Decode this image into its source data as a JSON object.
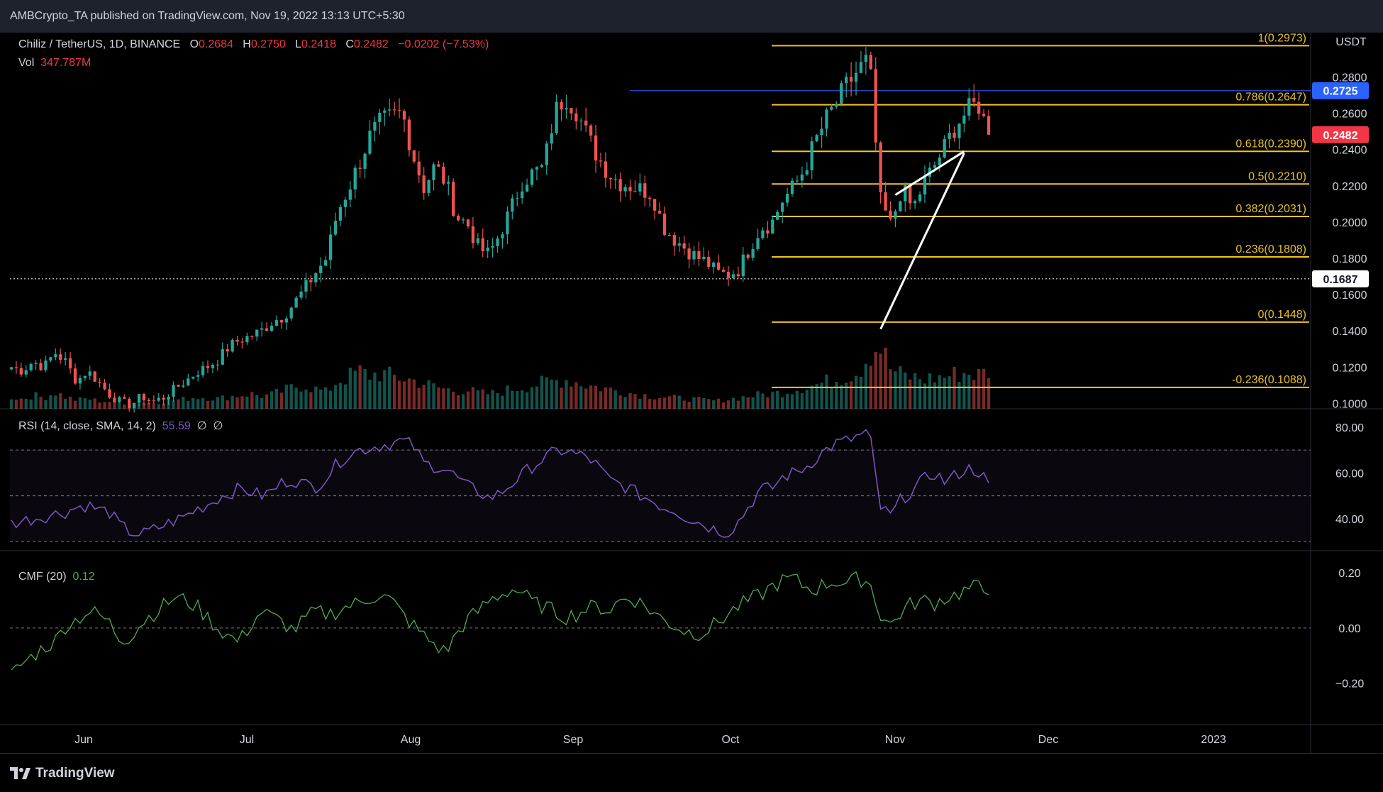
{
  "header": {
    "published": "AMBCrypto_TA published on TradingView.com, Nov 19, 2022 13:13 UTC+5:30"
  },
  "legend": {
    "symbol": "Chiliz / TetherUS, 1D, BINANCE",
    "o_label": "O",
    "o_value": "0.2684",
    "h_label": "H",
    "h_value": "0.2750",
    "l_label": "L",
    "l_value": "0.2418",
    "c_label": "C",
    "c_value": "0.2482",
    "change": "−0.0202 (−7.53%)",
    "vol_label": "Vol",
    "vol_value": "347.787M",
    "rsi_label": "RSI (14, close, SMA, 14, 2)",
    "rsi_value": "55.59",
    "rsi_na1": "∅",
    "rsi_na2": "∅",
    "cmf_label": "CMF (20)",
    "cmf_value": "0.12"
  },
  "footer": {
    "logo_text": "TradingView"
  },
  "chart_data": {
    "type": "candlestick",
    "quote_currency": "USDT",
    "x_ticks": [
      "Jun",
      "Jul",
      "Aug",
      "Sep",
      "Oct",
      "Nov",
      "Dec",
      "2023"
    ],
    "price_axis": {
      "ticks": [
        "0.2800",
        "0.2600",
        "0.2400",
        "0.2200",
        "0.2000",
        "0.1800",
        "0.1600",
        "0.1400",
        "0.1200",
        "0.1000"
      ],
      "ylim": [
        0.097,
        0.3045
      ]
    },
    "price_badges": [
      {
        "value": "0.2725",
        "color": "#2962ff"
      },
      {
        "value": "0.2482",
        "color": "#f23645"
      },
      {
        "value": "0.1687",
        "color": "#ffffff"
      }
    ],
    "fib_levels": [
      {
        "label": "1(0.2973)",
        "value": 0.2973
      },
      {
        "label": "0.786(0.2647)",
        "value": 0.2647
      },
      {
        "label": "0.618(0.2390)",
        "value": 0.239
      },
      {
        "label": "0.5(0.2210)",
        "value": 0.221
      },
      {
        "label": "0.382(0.2031)",
        "value": 0.2031
      },
      {
        "label": "0.236(0.1808)",
        "value": 0.1808
      },
      {
        "label": "0(0.1448)",
        "value": 0.1448
      },
      {
        "label": "-0.236(0.1088)",
        "value": 0.1088
      }
    ],
    "resistance_line": 0.2725,
    "current_price_line": 0.1687,
    "close_anchors": [
      0.12,
      0.118,
      0.123,
      0.12,
      0.128,
      0.123,
      0.112,
      0.118,
      0.112,
      0.105,
      0.101,
      0.099,
      0.104,
      0.101,
      0.103,
      0.108,
      0.112,
      0.117,
      0.12,
      0.124,
      0.131,
      0.135,
      0.137,
      0.14,
      0.145,
      0.148,
      0.155,
      0.163,
      0.172,
      0.18,
      0.205,
      0.218,
      0.232,
      0.247,
      0.255,
      0.258,
      0.26,
      0.237,
      0.219,
      0.231,
      0.222,
      0.203,
      0.199,
      0.186,
      0.182,
      0.194,
      0.207,
      0.222,
      0.227,
      0.23,
      0.26,
      0.27,
      0.262,
      0.248,
      0.236,
      0.227,
      0.222,
      0.22,
      0.218,
      0.216,
      0.198,
      0.191,
      0.186,
      0.181,
      0.178,
      0.172,
      0.171,
      0.174,
      0.186,
      0.197,
      0.199,
      0.212,
      0.219,
      0.229,
      0.244,
      0.256,
      0.266,
      0.276,
      0.284,
      0.29,
      0.212,
      0.198,
      0.219,
      0.207,
      0.221,
      0.231,
      0.242,
      0.254,
      0.261,
      0.266,
      0.2482
    ],
    "rsi": {
      "ylim": [
        26,
        88
      ],
      "ticks": [
        "80.00",
        "60.00",
        "40.00"
      ],
      "levels": [
        70,
        50,
        30
      ],
      "values": [
        38,
        39,
        40,
        41,
        42,
        43,
        45,
        46,
        44,
        43,
        37,
        34,
        33,
        35,
        37,
        39,
        41,
        44,
        46,
        49,
        51,
        53,
        52,
        50,
        52,
        56,
        57,
        55,
        54,
        58,
        64,
        68,
        70,
        71,
        72,
        73,
        74,
        72,
        64,
        63,
        62,
        58,
        54,
        52,
        49,
        51,
        55,
        59,
        63,
        66,
        69,
        70,
        68,
        67,
        63,
        57,
        55,
        53,
        50,
        48,
        45,
        44,
        41,
        39,
        37,
        35,
        34,
        39,
        46,
        53,
        53,
        58,
        60,
        62,
        66,
        70,
        73,
        74,
        76,
        78,
        45,
        41,
        49,
        52,
        57,
        60,
        56,
        59,
        62,
        61,
        55.59
      ]
    },
    "cmf": {
      "ylim": [
        -0.35,
        0.28
      ],
      "ticks": [
        "0.20",
        "0.00",
        "−0.20"
      ],
      "levels": [
        0
      ],
      "values": [
        -0.17,
        -0.13,
        -0.1,
        -0.07,
        -0.05,
        0.01,
        0.03,
        0.06,
        0.05,
        0.02,
        -0.04,
        -0.03,
        0.02,
        0.05,
        0.08,
        0.11,
        0.1,
        0.08,
        0.04,
        0.0,
        -0.03,
        -0.05,
        0.01,
        0.06,
        0.04,
        0.02,
        -0.01,
        0.03,
        0.06,
        0.05,
        0.06,
        0.08,
        0.09,
        0.11,
        0.12,
        0.1,
        0.05,
        0.01,
        -0.03,
        -0.06,
        -0.09,
        -0.02,
        0.03,
        0.06,
        0.1,
        0.12,
        0.14,
        0.13,
        0.09,
        0.08,
        0.06,
        0.04,
        0.05,
        0.07,
        0.08,
        0.06,
        0.1,
        0.11,
        0.09,
        0.06,
        0.03,
        0.01,
        -0.01,
        -0.02,
        -0.01,
        0.02,
        0.05,
        0.08,
        0.1,
        0.12,
        0.15,
        0.17,
        0.18,
        0.15,
        0.14,
        0.16,
        0.17,
        0.16,
        0.18,
        0.17,
        0.05,
        0.01,
        0.06,
        0.09,
        0.1,
        0.09,
        0.11,
        0.12,
        0.14,
        0.15,
        0.12
      ]
    },
    "volume_profile": [
      0.3,
      0.25,
      0.35,
      0.28,
      0.42,
      0.3,
      0.22,
      0.26,
      0.2,
      0.18,
      0.15,
      0.14,
      0.16,
      0.15,
      0.18,
      0.22,
      0.25,
      0.3,
      0.28,
      0.26,
      0.3,
      0.34,
      0.38,
      0.32,
      0.36,
      0.45,
      0.55,
      0.6,
      0.5,
      0.42,
      0.7,
      0.8,
      0.95,
      0.85,
      0.9,
      0.82,
      0.78,
      0.72,
      0.65,
      0.55,
      0.5,
      0.45,
      0.48,
      0.4,
      0.38,
      0.42,
      0.5,
      0.55,
      0.6,
      0.66,
      0.7,
      0.75,
      0.68,
      0.6,
      0.55,
      0.5,
      0.45,
      0.4,
      0.36,
      0.32,
      0.3,
      0.28,
      0.26,
      0.24,
      0.22,
      0.2,
      0.24,
      0.28,
      0.32,
      0.36,
      0.38,
      0.42,
      0.48,
      0.55,
      0.6,
      0.68,
      0.75,
      0.85,
      0.95,
      1.4,
      1.6,
      1.0,
      0.85,
      0.8,
      0.75,
      0.78,
      0.82,
      0.88,
      0.92,
      0.85,
      0.95
    ]
  },
  "colors": {
    "up": "#26a69a",
    "down": "#ef5350",
    "fib": "#f7c325",
    "resistance": "#2962ff",
    "rsi": "#7e57c2",
    "cmf": "#4caf50"
  }
}
